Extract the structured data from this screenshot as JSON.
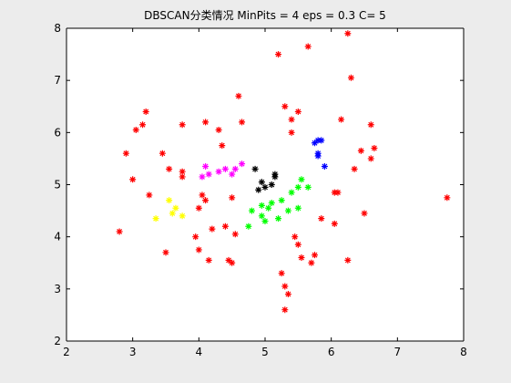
{
  "chart_data": {
    "type": "scatter",
    "title": "DBSCAN分类情况  MinPits = 4  eps = 0.3  C= 5",
    "xlabel": "",
    "ylabel": "",
    "xlim": [
      2,
      8
    ],
    "ylim": [
      2,
      8
    ],
    "xticks": [
      2,
      3,
      4,
      5,
      6,
      7,
      8
    ],
    "yticks": [
      2,
      3,
      4,
      5,
      6,
      7,
      8
    ],
    "grid": false,
    "legend": "none",
    "marker": "*",
    "series": [
      {
        "color": "#ff0000",
        "points": [
          [
            2.8,
            4.1
          ],
          [
            2.9,
            5.6
          ],
          [
            3.0,
            5.1
          ],
          [
            3.05,
            6.05
          ],
          [
            3.15,
            6.15
          ],
          [
            3.2,
            6.4
          ],
          [
            3.25,
            4.8
          ],
          [
            3.45,
            5.6
          ],
          [
            3.5,
            3.7
          ],
          [
            3.55,
            5.3
          ],
          [
            3.75,
            5.25
          ],
          [
            3.75,
            6.15
          ],
          [
            3.75,
            5.15
          ],
          [
            3.95,
            4.0
          ],
          [
            4.0,
            3.75
          ],
          [
            4.0,
            4.55
          ],
          [
            4.05,
            4.8
          ],
          [
            4.1,
            4.7
          ],
          [
            4.1,
            6.2
          ],
          [
            4.15,
            3.55
          ],
          [
            4.2,
            4.15
          ],
          [
            4.3,
            6.05
          ],
          [
            4.35,
            5.75
          ],
          [
            4.4,
            4.2
          ],
          [
            4.45,
            3.55
          ],
          [
            4.5,
            3.5
          ],
          [
            4.5,
            4.75
          ],
          [
            4.55,
            4.05
          ],
          [
            4.6,
            6.7
          ],
          [
            4.65,
            6.2
          ],
          [
            5.2,
            7.5
          ],
          [
            5.25,
            3.3
          ],
          [
            5.3,
            6.5
          ],
          [
            5.3,
            3.05
          ],
          [
            5.35,
            2.9
          ],
          [
            5.3,
            2.6
          ],
          [
            5.4,
            6.25
          ],
          [
            5.4,
            6.0
          ],
          [
            5.45,
            4.0
          ],
          [
            5.5,
            6.4
          ],
          [
            5.5,
            3.85
          ],
          [
            5.55,
            3.6
          ],
          [
            5.65,
            7.65
          ],
          [
            5.7,
            3.5
          ],
          [
            5.75,
            3.65
          ],
          [
            5.85,
            4.35
          ],
          [
            6.05,
            4.25
          ],
          [
            6.05,
            4.85
          ],
          [
            6.1,
            4.85
          ],
          [
            6.15,
            6.25
          ],
          [
            6.25,
            3.55
          ],
          [
            6.25,
            7.9
          ],
          [
            6.3,
            7.05
          ],
          [
            6.35,
            5.3
          ],
          [
            6.45,
            5.65
          ],
          [
            6.5,
            4.45
          ],
          [
            6.6,
            5.5
          ],
          [
            6.6,
            6.15
          ],
          [
            6.65,
            5.7
          ],
          [
            7.75,
            4.75
          ]
        ]
      },
      {
        "color": "#ffff00",
        "points": [
          [
            3.35,
            4.35
          ],
          [
            3.55,
            4.7
          ],
          [
            3.6,
            4.45
          ],
          [
            3.65,
            4.55
          ],
          [
            3.75,
            4.4
          ]
        ]
      },
      {
        "color": "#ff00ff",
        "points": [
          [
            4.05,
            5.15
          ],
          [
            4.1,
            5.35
          ],
          [
            4.15,
            5.2
          ],
          [
            4.3,
            5.25
          ],
          [
            4.4,
            5.3
          ],
          [
            4.5,
            5.2
          ],
          [
            4.55,
            5.3
          ],
          [
            4.65,
            5.4
          ]
        ]
      },
      {
        "color": "#00ff00",
        "points": [
          [
            4.75,
            4.2
          ],
          [
            4.8,
            4.5
          ],
          [
            4.95,
            4.4
          ],
          [
            4.95,
            4.6
          ],
          [
            5.0,
            4.3
          ],
          [
            5.05,
            4.55
          ],
          [
            5.1,
            4.65
          ],
          [
            5.2,
            4.35
          ],
          [
            5.25,
            4.7
          ],
          [
            5.35,
            4.5
          ],
          [
            5.4,
            4.85
          ],
          [
            5.5,
            4.95
          ],
          [
            5.5,
            4.55
          ],
          [
            5.55,
            5.1
          ],
          [
            5.65,
            4.95
          ]
        ]
      },
      {
        "color": "#000000",
        "points": [
          [
            4.85,
            5.3
          ],
          [
            4.9,
            4.9
          ],
          [
            4.95,
            5.05
          ],
          [
            5.0,
            4.95
          ],
          [
            5.1,
            5.0
          ],
          [
            5.15,
            5.2
          ],
          [
            5.15,
            5.15
          ]
        ]
      },
      {
        "color": "#0000ff",
        "points": [
          [
            5.75,
            5.8
          ],
          [
            5.8,
            5.85
          ],
          [
            5.85,
            5.85
          ],
          [
            5.8,
            5.55
          ],
          [
            5.8,
            5.6
          ],
          [
            5.9,
            5.35
          ]
        ]
      }
    ]
  }
}
